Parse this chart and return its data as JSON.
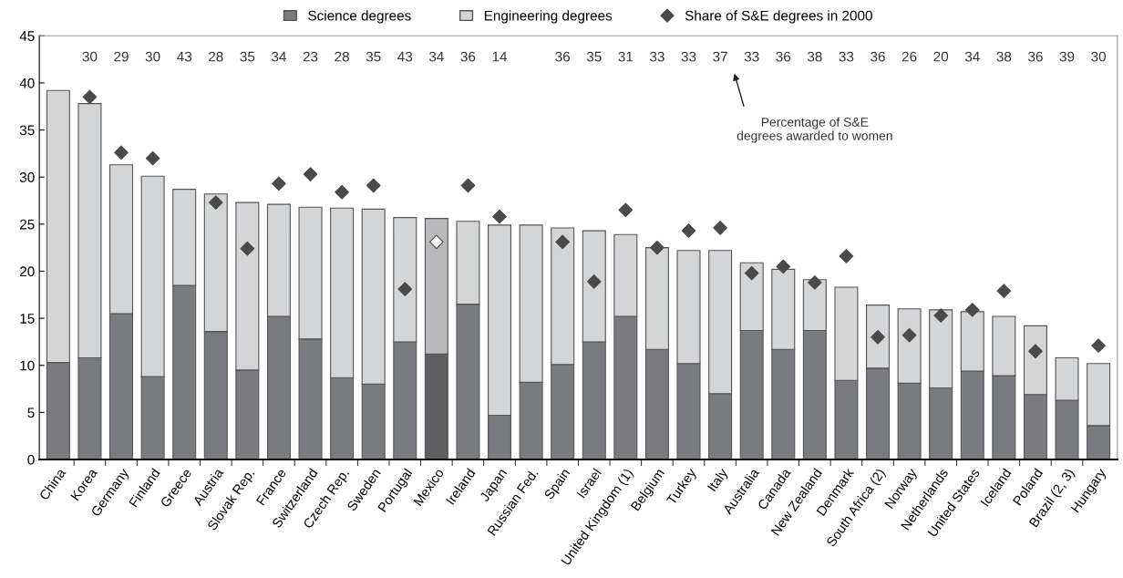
{
  "chart_data": [
    {
      "type": "bar",
      "stacked": true,
      "categories": [
        "China",
        "Korea",
        "Germany",
        "Finland",
        "Greece",
        "Austria",
        "Slovak Rep.",
        "France",
        "Switzerland",
        "Czech Rep.",
        "Sweden",
        "Portugal",
        "Mexico",
        "Ireland",
        "Japan",
        "Russian Fed.",
        "Spain",
        "Israel",
        "United Kingdom (1)",
        "Belgium",
        "Turkey",
        "Italy",
        "Australia",
        "Canada",
        "New Zealand",
        "Denmark",
        "South Africa (2)",
        "Norway",
        "Netherlands",
        "United States",
        "Iceland",
        "Poland",
        "Brazil (2, 3)",
        "Hungary"
      ],
      "series": [
        {
          "name": "Science degrees",
          "type": "bar",
          "color": "#7a7b7f",
          "colors": [
            "#7a7b7f",
            "#7a7b7f",
            "#7a7b7f",
            "#7a7b7f",
            "#7a7b7f",
            "#7a7b7f",
            "#7a7b7f",
            "#7a7b7f",
            "#7a7b7f",
            "#7a7b7f",
            "#7a7b7f",
            "#7a7b7f",
            "#5f5f61",
            "#7a7b7f",
            "#7a7b7f",
            "#7a7b7f",
            "#7a7b7f",
            "#7a7b7f",
            "#7a7b7f",
            "#7a7b7f",
            "#7a7b7f",
            "#7a7b7f",
            "#7a7b7f",
            "#7a7b7f",
            "#7a7b7f",
            "#7a7b7f",
            "#7a7b7f",
            "#7a7b7f",
            "#7a7b7f",
            "#7a7b7f",
            "#7a7b7f",
            "#7a7b7f",
            "#7a7b7f",
            "#7a7b7f"
          ],
          "values": [
            10.3,
            10.8,
            15.5,
            8.8,
            18.5,
            13.6,
            9.5,
            15.2,
            12.8,
            8.7,
            8.0,
            12.5,
            11.2,
            16.5,
            4.7,
            8.2,
            10.1,
            12.5,
            15.2,
            11.7,
            10.2,
            7.0,
            13.7,
            11.7,
            13.7,
            8.4,
            9.7,
            8.1,
            7.6,
            9.4,
            8.9,
            6.9,
            6.3,
            3.6
          ]
        },
        {
          "name": "Engineering degrees",
          "type": "bar",
          "color": "#d4d5d7",
          "colors": [
            "#d4d5d7",
            "#d4d5d7",
            "#d4d5d7",
            "#d4d5d7",
            "#d4d5d7",
            "#d4d5d7",
            "#d4d5d7",
            "#d4d5d7",
            "#d4d5d7",
            "#d4d5d7",
            "#d4d5d7",
            "#d4d5d7",
            "#b8b9bb",
            "#d4d5d7",
            "#d4d5d7",
            "#d4d5d7",
            "#d4d5d7",
            "#d4d5d7",
            "#d4d5d7",
            "#d4d5d7",
            "#d4d5d7",
            "#d4d5d7",
            "#d4d5d7",
            "#d4d5d7",
            "#d4d5d7",
            "#d4d5d7",
            "#d4d5d7",
            "#d4d5d7",
            "#d4d5d7",
            "#d4d5d7",
            "#d4d5d7",
            "#d4d5d7",
            "#d4d5d7",
            "#d4d5d7"
          ],
          "values": [
            28.9,
            27.0,
            15.8,
            21.3,
            10.2,
            14.6,
            17.8,
            11.9,
            14.0,
            18.0,
            18.6,
            13.2,
            14.4,
            8.8,
            20.2,
            16.7,
            14.5,
            11.8,
            8.7,
            10.8,
            12.0,
            15.2,
            7.2,
            8.5,
            5.4,
            9.9,
            6.7,
            7.9,
            8.3,
            6.3,
            6.3,
            7.3,
            4.5,
            6.6
          ]
        },
        {
          "name": "Share of S&E degrees in 2000",
          "type": "scatter",
          "marker": "diamond",
          "color": "#4a4a4a",
          "colors": [
            "#4a4a4a",
            "#4a4a4a",
            "#4a4a4a",
            "#4a4a4a",
            "#4a4a4a",
            "#4a4a4a",
            "#4a4a4a",
            "#4a4a4a",
            "#4a4a4a",
            "#4a4a4a",
            "#4a4a4a",
            "#4a4a4a",
            "#ffffff",
            "#4a4a4a",
            "#4a4a4a",
            "#4a4a4a",
            "#4a4a4a",
            "#4a4a4a",
            "#4a4a4a",
            "#4a4a4a",
            "#4a4a4a",
            "#4a4a4a",
            "#4a4a4a",
            "#4a4a4a",
            "#4a4a4a",
            "#4a4a4a",
            "#4a4a4a",
            "#4a4a4a",
            "#4a4a4a",
            "#4a4a4a",
            "#4a4a4a",
            "#4a4a4a",
            "#4a4a4a",
            "#4a4a4a"
          ],
          "values": [
            null,
            38.5,
            32.6,
            32.0,
            null,
            27.3,
            22.4,
            29.3,
            30.3,
            28.4,
            29.1,
            18.1,
            23.1,
            29.1,
            25.8,
            null,
            23.1,
            18.9,
            26.5,
            22.5,
            24.3,
            24.6,
            19.8,
            20.5,
            18.8,
            21.6,
            13.0,
            13.2,
            15.3,
            15.9,
            17.9,
            11.5,
            null,
            12.1
          ]
        }
      ],
      "ylim": [
        0,
        45
      ],
      "yticks": [
        0,
        5,
        10,
        15,
        20,
        25,
        30,
        35,
        40,
        45
      ],
      "grid": false,
      "legend": "top",
      "annotations": [
        "Percentage of S&E\ndegrees awarded to women"
      ]
    },
    {
      "type": "other",
      "categories": [
        null,
        null,
        null,
        null,
        null,
        null,
        null,
        null,
        null,
        null,
        null,
        null,
        null,
        null,
        null,
        null,
        null,
        null,
        null,
        null,
        null,
        null,
        null,
        null,
        null,
        null,
        null,
        null,
        null,
        null,
        null,
        null,
        null,
        null
      ],
      "values": [
        null,
        30,
        29,
        30,
        43,
        28,
        35,
        34,
        23,
        28,
        35,
        43,
        34,
        36,
        14,
        null,
        36,
        35,
        31,
        33,
        33,
        37,
        33,
        36,
        38,
        33,
        36,
        26,
        20,
        34,
        38,
        36,
        39,
        30
      ],
      "data_labels": true
    }
  ]
}
